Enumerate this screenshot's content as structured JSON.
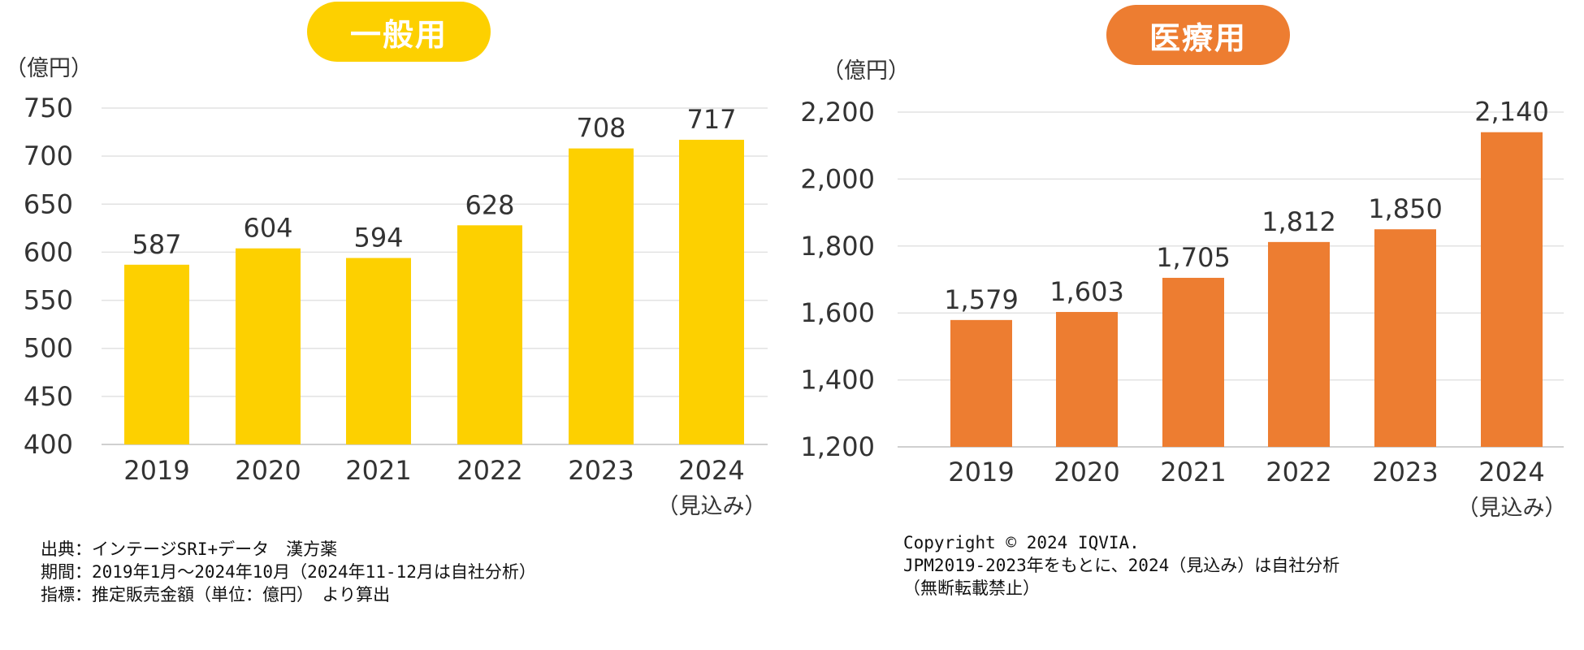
{
  "chart_data": [
    {
      "type": "bar",
      "title": "一般用",
      "unit_label": "（億円）",
      "categories": [
        "2019",
        "2020",
        "2021",
        "2022",
        "2023",
        "2024"
      ],
      "category_sublabels": [
        "",
        "",
        "",
        "",
        "",
        "（見込み）"
      ],
      "values": [
        587,
        604,
        594,
        628,
        708,
        717
      ],
      "data_labels": [
        "587",
        "604",
        "594",
        "628",
        "708",
        "717"
      ],
      "ylim": [
        400,
        750
      ],
      "yticks": [
        400,
        450,
        500,
        550,
        600,
        650,
        700,
        750
      ],
      "ytick_labels": [
        "400",
        "450",
        "500",
        "550",
        "600",
        "650",
        "700",
        "750"
      ],
      "grid": true,
      "legend": "none",
      "bar_color": "#FDD000",
      "title_bg": "#FDD000"
    },
    {
      "type": "bar",
      "title": "医療用",
      "unit_label": "（億円）",
      "categories": [
        "2019",
        "2020",
        "2021",
        "2022",
        "2023",
        "2024"
      ],
      "category_sublabels": [
        "",
        "",
        "",
        "",
        "",
        "（見込み）"
      ],
      "values": [
        1579,
        1603,
        1705,
        1812,
        1850,
        2140
      ],
      "data_labels": [
        "1,579",
        "1,603",
        "1,705",
        "1,812",
        "1,850",
        "2,140"
      ],
      "ylim": [
        1200,
        2200
      ],
      "yticks": [
        1200,
        1400,
        1600,
        1800,
        2000,
        2200
      ],
      "ytick_labels": [
        "1,200",
        "1,400",
        "1,600",
        "1,800",
        "2,000",
        "2,200"
      ],
      "grid": true,
      "legend": "none",
      "bar_color": "#ED7D31",
      "title_bg": "#ED7D31"
    }
  ],
  "source_notes": {
    "lines": [
      "出典：インテージSRI+データ　漢方薬",
      "期間：2019年1月～2024年10月（2024年11-12月は自社分析）",
      "指標：推定販売金額（単位：億円）　より算出"
    ]
  },
  "copyright_notes": {
    "lines": [
      "Copyright © 2024 IQVIA.",
      "JPM2019-2023年をもとに、2024（見込み）は自社分析",
      "（無断転載禁止）"
    ]
  }
}
